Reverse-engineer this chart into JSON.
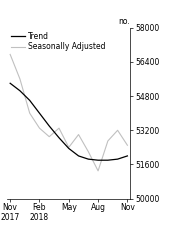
{
  "title_right": "no.",
  "legend_entries": [
    "Trend",
    "Seasonally Adjusted"
  ],
  "trend_color": "#000000",
  "seasonal_color": "#c0c0c0",
  "trend_linewidth": 0.9,
  "seasonal_linewidth": 0.8,
  "ylim": [
    50000,
    58000
  ],
  "yticks": [
    50000,
    51600,
    53200,
    54800,
    56400,
    58000
  ],
  "xlim": [
    -0.3,
    12.3
  ],
  "x_tick_positions": [
    0,
    3,
    6,
    9,
    12
  ],
  "x_tick_labels": [
    "Nov\n2017",
    "Feb\n2018",
    "May",
    "Aug",
    "Nov"
  ],
  "trend_x": [
    0,
    1,
    2,
    3,
    4,
    5,
    6,
    7,
    8,
    9,
    10,
    11,
    12
  ],
  "trend_y": [
    55400,
    55050,
    54600,
    54000,
    53400,
    52850,
    52350,
    52000,
    51850,
    51800,
    51800,
    51850,
    52000
  ],
  "seasonal_x": [
    0,
    1,
    2,
    3,
    4,
    5,
    6,
    7,
    8,
    9,
    10,
    11,
    12
  ],
  "seasonal_y": [
    56750,
    55600,
    54000,
    53300,
    52900,
    53300,
    52400,
    53000,
    52200,
    51300,
    52700,
    53200,
    52500
  ],
  "background_color": "#ffffff",
  "fontsize": 5.5,
  "legend_fontsize": 5.5
}
